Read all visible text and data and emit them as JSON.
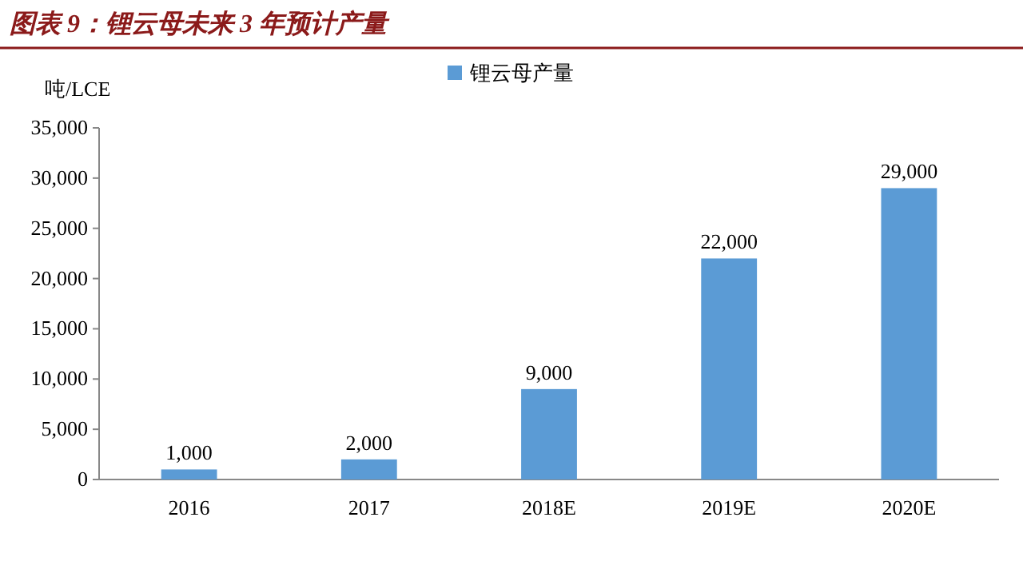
{
  "chart_data": {
    "type": "bar",
    "title": "图表 9：锂云母未来 3 年预计产量",
    "ylabel": "吨/LCE",
    "categories": [
      "2016",
      "2017",
      "2018E",
      "2019E",
      "2020E"
    ],
    "series": [
      {
        "name": "锂云母产量",
        "color": "#5b9bd5",
        "values": [
          1000,
          2000,
          9000,
          22000,
          29000
        ]
      }
    ],
    "value_labels": [
      "1,000",
      "2,000",
      "9,000",
      "22,000",
      "29,000"
    ],
    "ylim": [
      0,
      35000
    ],
    "yticks": [
      0,
      {
        "value": 5000,
        "label": "5,000"
      },
      {
        "value": 10000,
        "label": "10,000"
      },
      {
        "value": 15000,
        "label": "15,000"
      },
      {
        "value": 20000,
        "label": "20,000"
      },
      {
        "value": 25000,
        "label": "25,000"
      },
      {
        "value": 30000,
        "label": "30,000"
      },
      {
        "value": 35000,
        "label": "35,000"
      }
    ],
    "grid": false,
    "legend": "top"
  }
}
